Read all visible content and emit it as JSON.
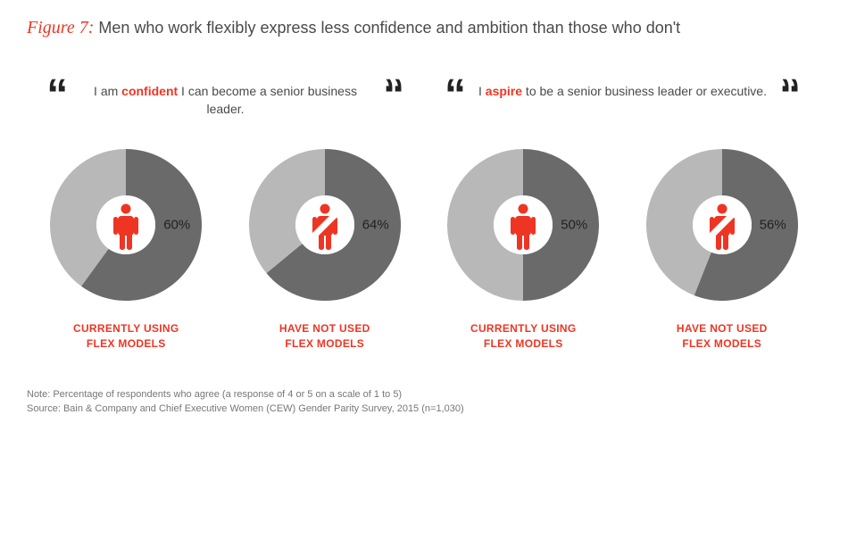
{
  "title": {
    "label": "Figure 7:",
    "text": "Men who work flexibly express less confidence and ambition than those who don't"
  },
  "quotes": [
    {
      "pre": "I am ",
      "highlight": "confident",
      "post": " I can become a senior business leader."
    },
    {
      "pre": "I ",
      "highlight": "aspire",
      "post": " to be a senior business leader or executive."
    }
  ],
  "charts": [
    {
      "value": 60,
      "label_pct": "60%",
      "caption_l1": "CURRENTLY USING",
      "caption_l2": "FLEX MODELS",
      "slash": false
    },
    {
      "value": 64,
      "label_pct": "64%",
      "caption_l1": "HAVE NOT USED",
      "caption_l2": "FLEX MODELS",
      "slash": true
    },
    {
      "value": 50,
      "label_pct": "50%",
      "caption_l1": "CURRENTLY USING",
      "caption_l2": "FLEX MODELS",
      "slash": false
    },
    {
      "value": 56,
      "label_pct": "56%",
      "caption_l1": "HAVE NOT USED",
      "caption_l2": "FLEX MODELS",
      "slash": true
    }
  ],
  "style": {
    "donut": {
      "outer_r": 85,
      "inner_r": 33,
      "primary_color": "#6a6a6a",
      "secondary_color": "#b8b8b8",
      "center_fill": "#ffffff",
      "icon_color": "#ee3524",
      "slash_color": "#ffffff",
      "start_angle_deg": 90
    }
  },
  "footnotes": {
    "note": "Note: Percentage of respondents who agree (a response of 4 or 5 on a scale of 1 to 5)",
    "source": "Source: Bain & Company and Chief Executive Women (CEW) Gender Parity Survey, 2015 (n=1,030)"
  }
}
